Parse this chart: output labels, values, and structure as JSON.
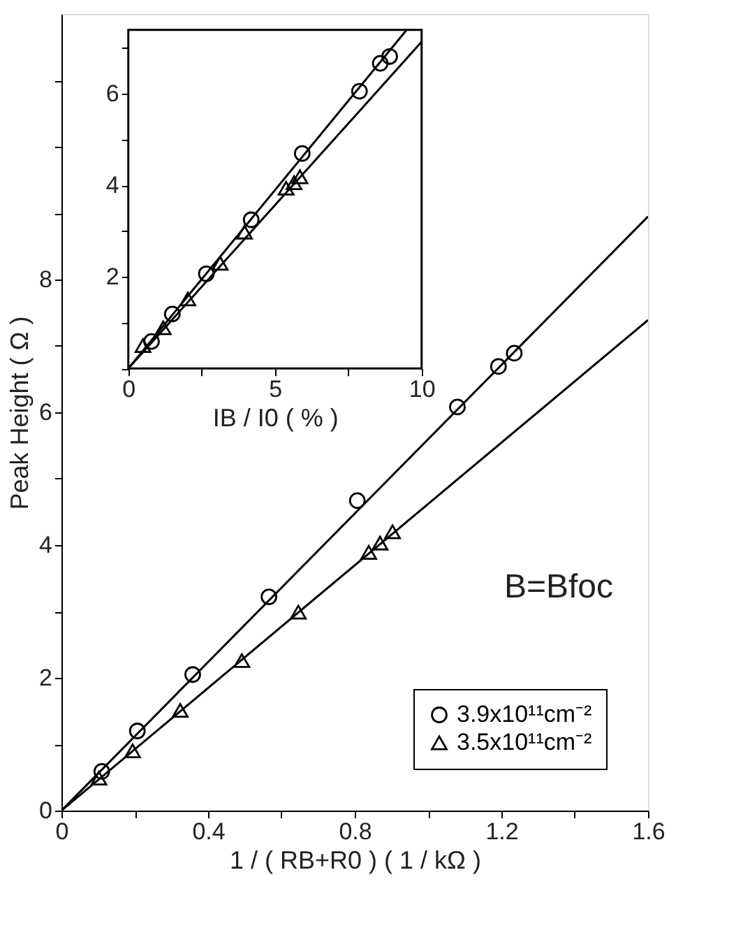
{
  "chart_data": [
    {
      "type": "scatter",
      "xlabel": "1 / ( RB+R0 ) ( 1 / kΩ )",
      "ylabel": "Peak Height ( Ω )",
      "xlim": [
        0,
        1.6
      ],
      "ylim": [
        0,
        12
      ],
      "xticks": [
        0,
        {
          "value": 0.2,
          "label": null
        },
        0.4,
        {
          "value": 0.6,
          "label": null
        },
        0.8,
        {
          "value": 1.0,
          "label": null
        },
        1.2,
        {
          "value": 1.4,
          "label": null
        },
        1.6
      ],
      "yticks": [
        0,
        {
          "value": 1,
          "label": null
        },
        2,
        {
          "value": 3,
          "label": null
        },
        4,
        {
          "value": 5,
          "label": null
        },
        6,
        {
          "value": 7,
          "label": null
        },
        8,
        {
          "value": 9,
          "label": null
        },
        {
          "value": 10,
          "label": null
        },
        {
          "value": 11,
          "label": null
        }
      ],
      "legend": "bottom right",
      "annotations": [
        "B=Bfoc"
      ],
      "series": [
        {
          "name": "3.9x10¹¹cm⁻²",
          "color": "#000000",
          "marker": "circle",
          "x": [
            0.11,
            0.207,
            0.358,
            0.566,
            0.807,
            1.08,
            1.192,
            1.235
          ],
          "values": [
            0.59,
            1.2,
            2.05,
            3.22,
            4.67,
            6.08,
            6.69,
            6.89
          ]
        },
        {
          "name": "3.5x10¹¹cm⁻²",
          "color": "#000000",
          "marker": "triangle",
          "x": [
            0.102,
            0.194,
            0.324,
            0.492,
            0.646,
            0.838,
            0.869,
            0.903
          ],
          "values": [
            0.49,
            0.9,
            1.51,
            2.26,
            2.99,
            3.89,
            4.03,
            4.2
          ]
        },
        {
          "type": "line",
          "color": "#000000",
          "x": [
            0,
            1.6
          ],
          "values": [
            0,
            8.95
          ]
        },
        {
          "type": "line",
          "color": "#000000",
          "x": [
            0,
            1.6
          ],
          "values": [
            0,
            7.39
          ]
        }
      ]
    },
    {
      "type": "scatter",
      "xlabel": "IB / I0 ( % )",
      "xlim": [
        0,
        10
      ],
      "ylim": [
        0,
        7.4
      ],
      "xticks": [
        0,
        {
          "value": 2.5,
          "label": null
        },
        5,
        {
          "value": 7.5,
          "label": null
        },
        10
      ],
      "yticks": [
        {
          "value": 0,
          "label": null
        },
        {
          "value": 1,
          "label": null
        },
        2,
        {
          "value": 3,
          "label": null
        },
        4,
        {
          "value": 5,
          "label": null
        },
        6,
        {
          "value": 7,
          "label": null
        }
      ],
      "series": [
        {
          "color": "#000000",
          "marker": "circle",
          "x": [
            0.79,
            1.5,
            2.66,
            4.19,
            5.93,
            7.88,
            8.59,
            8.91
          ],
          "values": [
            0.59,
            1.19,
            2.07,
            3.25,
            4.7,
            6.06,
            6.67,
            6.82
          ]
        },
        {
          "color": "#000000",
          "marker": "triangle",
          "x": [
            0.5,
            1.19,
            2.03,
            3.13,
            3.96,
            5.38,
            5.65,
            5.85
          ],
          "values": [
            0.5,
            0.89,
            1.52,
            2.3,
            2.98,
            3.94,
            4.06,
            4.19
          ]
        },
        {
          "type": "line",
          "color": "#000000",
          "x": [
            0,
            9.49
          ],
          "values": [
            0,
            7.4
          ]
        },
        {
          "type": "line",
          "color": "#000000",
          "x": [
            0,
            10
          ],
          "values": [
            0,
            7.14
          ]
        }
      ]
    }
  ]
}
